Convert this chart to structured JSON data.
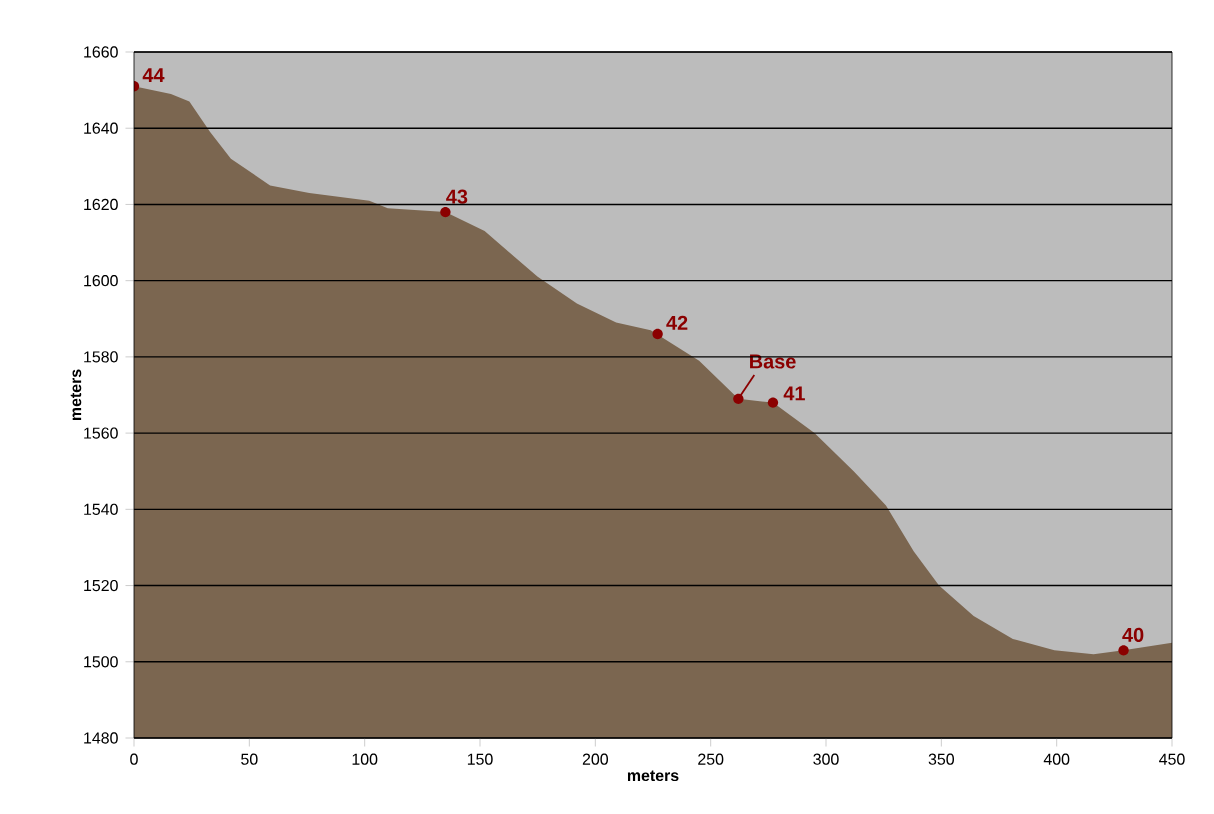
{
  "chart_data": {
    "type": "area",
    "xlabel": "meters",
    "ylabel": "meters",
    "x": [
      0,
      16,
      24,
      33,
      42,
      59,
      76,
      102,
      110,
      135,
      152,
      175,
      192,
      209,
      224,
      245,
      262,
      277,
      295,
      312,
      326,
      338,
      349,
      364,
      381,
      399,
      416,
      429,
      450
    ],
    "series": [
      {
        "color": "#7b6650",
        "values": [
          1651,
          1649,
          1647,
          1639,
          1632,
          1625,
          1623,
          1621,
          1619,
          1618,
          1613,
          1601,
          1594,
          1589,
          1587,
          1579,
          1569,
          1568,
          1560,
          1550,
          1541,
          1529,
          1520,
          1512,
          1506,
          1503,
          1502,
          1503,
          1505
        ]
      }
    ],
    "xlim": [
      0,
      450
    ],
    "xticks": [
      0,
      50,
      100,
      150,
      200,
      250,
      300,
      350,
      400,
      450
    ],
    "ylim": [
      1480,
      1660
    ],
    "yticks": [
      1480,
      1500,
      1520,
      1540,
      1560,
      1580,
      1600,
      1620,
      1640,
      1660
    ],
    "grid": "y",
    "annotations": [
      {
        "text": "44",
        "x": 0,
        "y": 1651
      },
      {
        "text": "43",
        "x": 135,
        "y": 1618
      },
      {
        "text": "42",
        "x": 227,
        "y": 1586
      },
      {
        "text": "Base",
        "x": 262,
        "y": 1569
      },
      {
        "text": "41",
        "x": 277,
        "y": 1568
      },
      {
        "text": "40",
        "x": 429,
        "y": 1503
      }
    ]
  }
}
